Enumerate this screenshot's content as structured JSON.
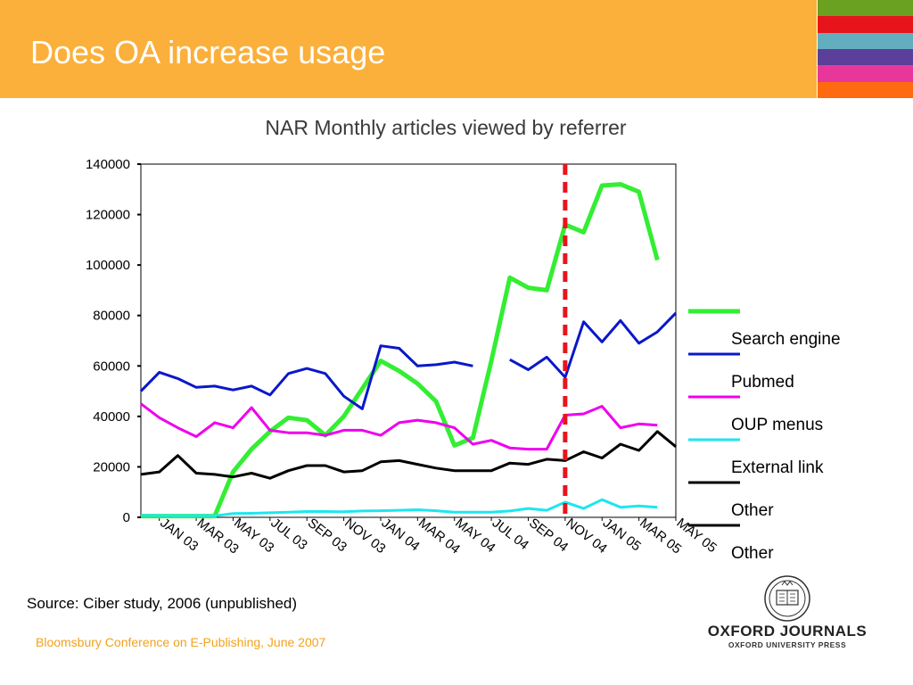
{
  "slide": {
    "title": "Does OA increase usage",
    "source": "Source: Ciber study, 2006 (unpublished)",
    "footer": "Bloomsbury Conference on E-Publishing, June 2007",
    "stripe_colors": [
      "#6aa121",
      "#e8141c",
      "#62aebf",
      "#5b3f9b",
      "#e8379a",
      "#ff6a10"
    ]
  },
  "logo": {
    "main": "OXFORD JOURNALS",
    "sub": "OXFORD UNIVERSITY PRESS"
  },
  "chart_data": {
    "type": "line",
    "title": "NAR Monthly articles viewed by referrer",
    "xlabel": "",
    "ylabel": "",
    "ylim": [
      0,
      140000
    ],
    "yticks": [
      0,
      20000,
      40000,
      60000,
      80000,
      100000,
      120000,
      140000
    ],
    "grid": false,
    "legend_position": "right",
    "x_labels": [
      "JAN 03",
      "MAR 03",
      "MAY 03",
      "JUL 03",
      "SEP 03",
      "NOV 03",
      "JAN 04",
      "MAR 04",
      "MAY 04",
      "JUL 04",
      "SEP 04",
      "NOV 04",
      "JAN 05",
      "MAR 05",
      "MAY 05"
    ],
    "x": [
      "DEC 02",
      "JAN 03",
      "FEB 03",
      "MAR 03",
      "APR 03",
      "MAY 03",
      "JUN 03",
      "JUL 03",
      "AUG 03",
      "SEP 03",
      "OCT 03",
      "NOV 03",
      "DEC 03",
      "JAN 04",
      "FEB 04",
      "MAR 04",
      "APR 04",
      "MAY 04",
      "JUN 04",
      "JUL 04",
      "AUG 04",
      "SEP 04",
      "OCT 04",
      "NOV 04",
      "DEC 04",
      "JAN 05",
      "FEB 05",
      "MAR 05",
      "APR 05",
      "MAY 05"
    ],
    "annotation": {
      "type": "vertical-dashed-line",
      "x": "NOV 04",
      "color": "#e8141c"
    },
    "series": [
      {
        "name": "Search engine",
        "color": "#33ee33",
        "values": [
          500,
          500,
          500,
          500,
          500,
          18000,
          27000,
          34000,
          39500,
          38500,
          32500,
          40000,
          51000,
          62000,
          58000,
          53000,
          46000,
          28500,
          31500,
          62000,
          95000,
          91000,
          90000,
          116000,
          113000,
          131500,
          132000,
          129000,
          102000,
          null
        ]
      },
      {
        "name": "Pubmed",
        "color": "#0a18c8",
        "values": [
          50000,
          57500,
          55000,
          51500,
          52000,
          50500,
          52000,
          48500,
          57000,
          59000,
          57000,
          48000,
          43000,
          68000,
          67000,
          60000,
          60500,
          61500,
          60000,
          null,
          62500,
          58500,
          63500,
          55500,
          77500,
          69500,
          78000,
          69000,
          73500,
          81000
        ]
      },
      {
        "name": "OUP menus",
        "color": "#ee00ee",
        "values": [
          45000,
          39500,
          35500,
          32000,
          37500,
          35500,
          43500,
          34500,
          33500,
          33500,
          32500,
          34500,
          34500,
          32500,
          37500,
          38500,
          37500,
          35500,
          29000,
          30500,
          27500,
          27000,
          27000,
          40500,
          41000,
          44000,
          35500,
          37000,
          36500,
          null
        ]
      },
      {
        "name": "External link",
        "color": "#1ee6ee",
        "values": [
          800,
          700,
          600,
          700,
          600,
          1500,
          1600,
          1800,
          2000,
          2300,
          2300,
          2200,
          2500,
          2600,
          2800,
          3000,
          2600,
          2000,
          2000,
          2000,
          2500,
          3500,
          2800,
          6000,
          3500,
          7000,
          4000,
          4500,
          4000,
          null
        ]
      },
      {
        "name": "Other",
        "color": "#000000",
        "values": [
          17000,
          18000,
          24500,
          17500,
          17000,
          16000,
          17500,
          15500,
          18500,
          20500,
          20500,
          18000,
          18500,
          22000,
          22500,
          21000,
          19500,
          18500,
          18500,
          18500,
          21500,
          21000,
          23000,
          22500,
          26000,
          23500,
          29000,
          26500,
          34000,
          28000
        ]
      }
    ]
  }
}
